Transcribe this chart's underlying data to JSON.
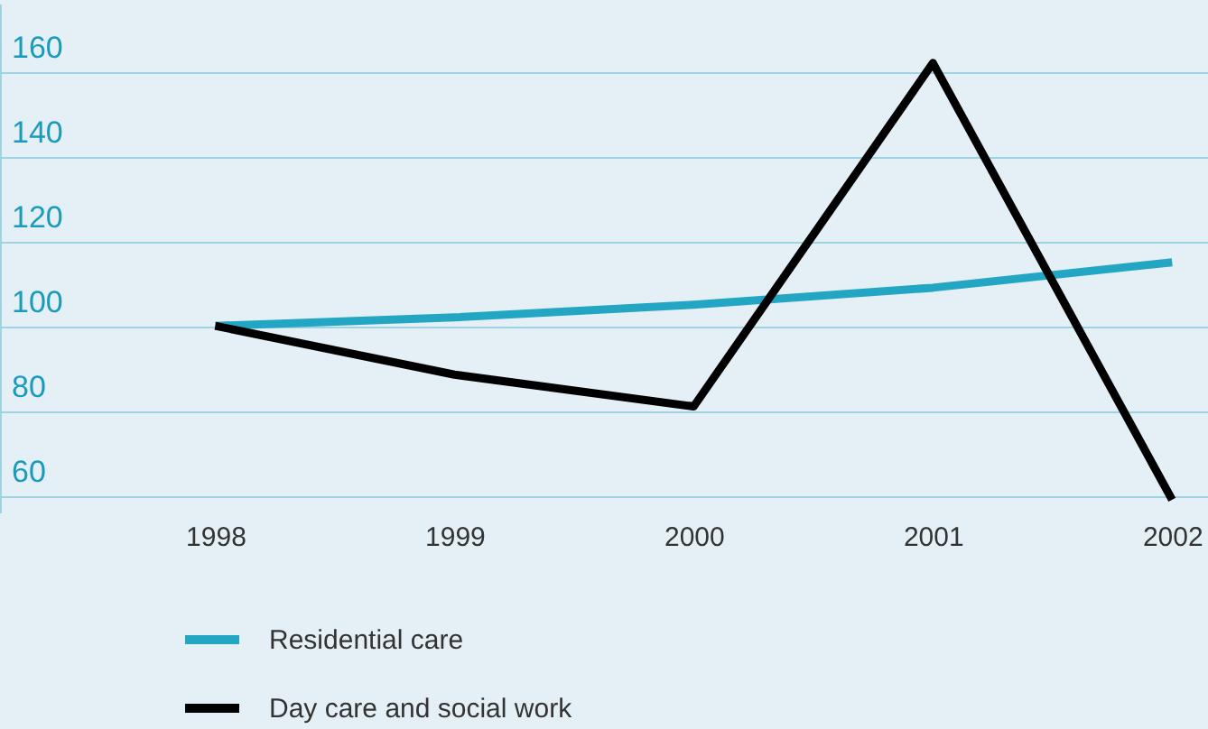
{
  "chart_data": {
    "type": "line",
    "x": [
      1998,
      1999,
      2000,
      2001,
      2002
    ],
    "xlim": [
      1997.1,
      2002.15
    ],
    "xticks": [
      1998,
      1999,
      2000,
      2001,
      2002
    ],
    "ylim": [
      56,
      176
    ],
    "yticks": [
      60,
      80,
      100,
      120,
      140,
      160
    ],
    "grid": "y",
    "legend": "bottom",
    "series": [
      {
        "name": "Residential care",
        "color": "#22a6c4",
        "values": [
          100,
          102,
          105,
          109,
          115
        ]
      },
      {
        "name": "Day care and social work",
        "color": "#000000",
        "values": [
          100,
          88.5,
          81,
          162,
          59
        ]
      }
    ]
  }
}
